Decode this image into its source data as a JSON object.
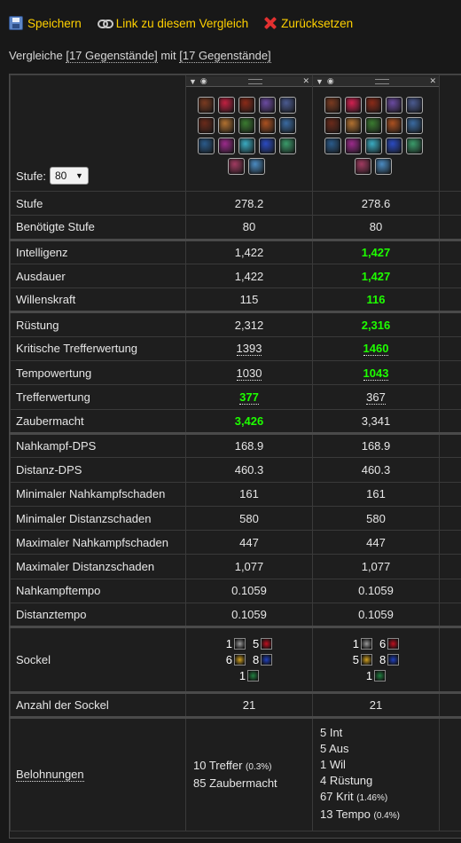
{
  "toolbar": {
    "save": "Speichern",
    "link": "Link zu diesem Vergleich",
    "reset": "Zurücksetzen"
  },
  "compare": {
    "prefix": "Vergleiche",
    "left": "[17 Gegenstände]",
    "middle": "mit",
    "right": "[17 Gegenstände]"
  },
  "level_label": "Stufe:",
  "level_value": "80",
  "item_colors": [
    [
      "#7a3a20",
      "#c02040",
      "#8a2a18",
      "#6a4aa0",
      "#4a5a90",
      "#6a2a1a",
      "#b07030",
      "#3a7a30",
      "#aa5020",
      "#3a6aa0",
      "#2a5a8a",
      "#9a2a8a",
      "#3aaac0",
      "#2a4ac0",
      "#3a9a6a",
      "#a03a60",
      "#4a8ac0"
    ],
    [
      "#7a3a20",
      "#d02050",
      "#8a2a18",
      "#6a4aa0",
      "#4a5a90",
      "#6a2a1a",
      "#b07030",
      "#3a7a30",
      "#aa5020",
      "#3a6aa0",
      "#2a5a8a",
      "#9a2a8a",
      "#3aaac0",
      "#2a4ac0",
      "#3a9a6a",
      "#a03a60",
      "#4a8ac0"
    ]
  ],
  "rows": [
    {
      "label": "Stufe",
      "a": "278.2",
      "b": "278.6",
      "better": "",
      "sep": false
    },
    {
      "label": "Benötigte Stufe",
      "a": "80",
      "b": "80",
      "better": "",
      "sep": false
    },
    {
      "label": "Intelligenz",
      "a": "1,422",
      "b": "1,427",
      "better": "b",
      "sep": true
    },
    {
      "label": "Ausdauer",
      "a": "1,422",
      "b": "1,427",
      "better": "b",
      "sep": false
    },
    {
      "label": "Willenskraft",
      "a": "115",
      "b": "116",
      "better": "b",
      "sep": false
    },
    {
      "label": "Rüstung",
      "a": "2,312",
      "b": "2,316",
      "better": "b",
      "sep": true
    },
    {
      "label": "Kritische Trefferwertung",
      "a": "1393",
      "b": "1460",
      "better": "b",
      "sep": false,
      "ul": true
    },
    {
      "label": "Tempowertung",
      "a": "1030",
      "b": "1043",
      "better": "b",
      "sep": false,
      "ul": true
    },
    {
      "label": "Trefferwertung",
      "a": "377",
      "b": "367",
      "better": "a",
      "sep": false,
      "ul": true
    },
    {
      "label": "Zaubermacht",
      "a": "3,426",
      "b": "3,341",
      "better": "a",
      "sep": false
    },
    {
      "label": "Nahkampf-DPS",
      "a": "168.9",
      "b": "168.9",
      "better": "",
      "sep": true
    },
    {
      "label": "Distanz-DPS",
      "a": "460.3",
      "b": "460.3",
      "better": "",
      "sep": false
    },
    {
      "label": "Minimaler Nahkampfschaden",
      "a": "161",
      "b": "161",
      "better": "",
      "sep": false
    },
    {
      "label": "Minimaler Distanzschaden",
      "a": "580",
      "b": "580",
      "better": "",
      "sep": false
    },
    {
      "label": "Maximaler Nahkampfschaden",
      "a": "447",
      "b": "447",
      "better": "",
      "sep": false
    },
    {
      "label": "Maximaler Distanzschaden",
      "a": "1,077",
      "b": "1,077",
      "better": "",
      "sep": false
    },
    {
      "label": "Nahkampftempo",
      "a": "0.1059",
      "b": "0.1059",
      "better": "",
      "sep": false
    },
    {
      "label": "Distanztempo",
      "a": "0.1059",
      "b": "0.1059",
      "better": "",
      "sep": false
    }
  ],
  "sockets": {
    "label": "Sockel",
    "a": [
      {
        "n": "1",
        "color": "#9a9a9a"
      },
      {
        "n": "5",
        "color": "#c01020"
      },
      {
        "n": "6",
        "color": "#d0a020"
      },
      {
        "n": "8",
        "color": "#2040c0"
      },
      {
        "n": "1",
        "color": "#208040"
      }
    ],
    "b": [
      {
        "n": "1",
        "color": "#9a9a9a"
      },
      {
        "n": "6",
        "color": "#c01020"
      },
      {
        "n": "5",
        "color": "#d0a020"
      },
      {
        "n": "8",
        "color": "#2040c0"
      },
      {
        "n": "1",
        "color": "#208040"
      }
    ]
  },
  "socket_count": {
    "label": "Anzahl der Sockel",
    "a": "21",
    "b": "21"
  },
  "rewards": {
    "label": "Belohnungen",
    "a": [
      {
        "text": "10 Treffer",
        "small": "(0.3%)"
      },
      {
        "text": "85 Zaubermacht",
        "small": ""
      }
    ],
    "b": [
      {
        "text": "5 Int",
        "small": ""
      },
      {
        "text": "5 Aus",
        "small": ""
      },
      {
        "text": "1 Wil",
        "small": ""
      },
      {
        "text": "4 Rüstung",
        "small": ""
      },
      {
        "text": "67 Krit",
        "small": "(1.46%)"
      },
      {
        "text": "13 Tempo",
        "small": "(0.4%)"
      }
    ]
  }
}
